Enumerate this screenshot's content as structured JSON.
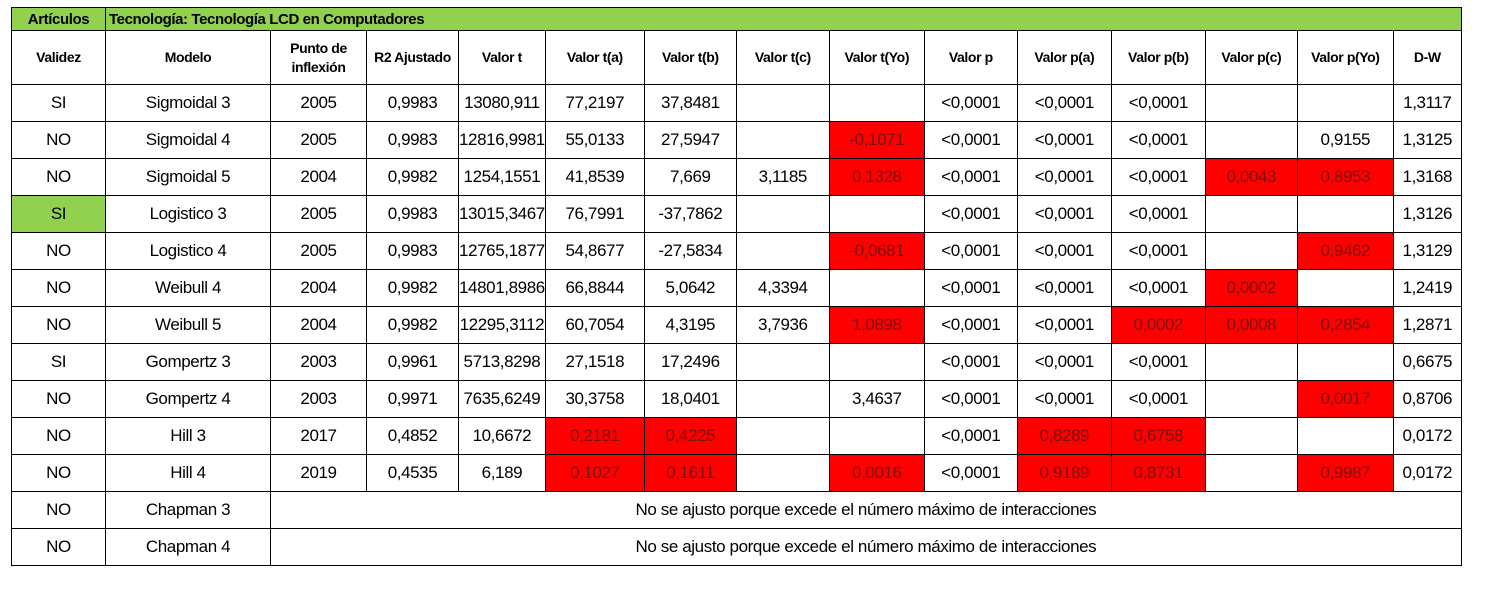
{
  "table": {
    "top_left": "Artículos",
    "title": "Tecnología: Tecnología LCD en Computadores",
    "headers": [
      "Validez",
      "Modelo",
      "Punto de inflexión",
      "R2 Ajustado",
      "Valor t",
      "Valor t(a)",
      "Valor t(b)",
      "Valor t(c)",
      "Valor t(Yo)",
      "Valor p",
      "Valor p(a)",
      "Valor p(b)",
      "Valor p(c)",
      "Valor p(Yo)",
      "D-W"
    ],
    "rows": [
      [
        "SI",
        "Sigmoidal 3",
        "2005",
        "0,9983",
        "13080,911",
        "77,2197",
        "37,8481",
        "",
        "",
        "<0,0001",
        "<0,0001",
        "<0,0001",
        "",
        "",
        "1,3117"
      ],
      [
        "NO",
        "Sigmoidal 4",
        "2005",
        "0,9983",
        "12816,9981",
        "55,0133",
        "27,5947",
        "",
        "-0,1071",
        "<0,0001",
        "<0,0001",
        "<0,0001",
        "",
        "0,9155",
        "1,3125"
      ],
      [
        "NO",
        "Sigmoidal 5",
        "2004",
        "0,9982",
        "1254,1551",
        "41,8539",
        "7,669",
        "3,1185",
        "0,1328",
        "<0,0001",
        "<0,0001",
        "<0,0001",
        "0,0043",
        "0,8953",
        "1,3168"
      ],
      [
        "SI",
        "Logistico 3",
        "2005",
        "0,9983",
        "13015,3467",
        "76,7991",
        "-37,7862",
        "",
        "",
        "<0,0001",
        "<0,0001",
        "<0,0001",
        "",
        "",
        "1,3126"
      ],
      [
        "NO",
        "Logistico 4",
        "2005",
        "0,9983",
        "12765,1877",
        "54,8677",
        "-27,5834",
        "",
        "-0,0681",
        "<0,0001",
        "<0,0001",
        "<0,0001",
        "",
        "0,9462",
        "1,3129"
      ],
      [
        "NO",
        "Weibull 4",
        "2004",
        "0,9982",
        "14801,8986",
        "66,8844",
        "5,0642",
        "4,3394",
        "",
        "<0,0001",
        "<0,0001",
        "<0,0001",
        "0,0002",
        "",
        "1,2419"
      ],
      [
        "NO",
        "Weibull 5",
        "2004",
        "0,9982",
        "12295,3112",
        "60,7054",
        "4,3195",
        "3,7936",
        "1,0898",
        "<0,0001",
        "<0,0001",
        "0,0002",
        "0,0008",
        "0,2854",
        "1,2871"
      ],
      [
        "SI",
        "Gompertz 3",
        "2003",
        "0,9961",
        "5713,8298",
        "27,1518",
        "17,2496",
        "",
        "",
        "<0,0001",
        "<0,0001",
        "<0,0001",
        "",
        "",
        "0,6675"
      ],
      [
        "NO",
        "Gompertz 4",
        "2003",
        "0,9971",
        "7635,6249",
        "30,3758",
        "18,0401",
        "",
        "3,4637",
        "<0,0001",
        "<0,0001",
        "<0,0001",
        "",
        "0,0017",
        "0,8706"
      ],
      [
        "NO",
        "Hill 3",
        "2017",
        "0,4852",
        "10,6672",
        "0,2181",
        "0,4225",
        "",
        "",
        "<0,0001",
        "0,8289",
        "0,6758",
        "",
        "",
        "0,0172"
      ],
      [
        "NO",
        "Hill 4",
        "2019",
        "0,4535",
        "6,189",
        "0,1027",
        "0,1611",
        "",
        "0,0016",
        "<0,0001",
        "0,9189",
        "0,8731",
        "",
        "0,9987",
        "0,0172"
      ]
    ],
    "highlights": [
      [],
      [
        8
      ],
      [
        8,
        12,
        13
      ],
      [],
      [
        8,
        13
      ],
      [
        12
      ],
      [
        8,
        11,
        12,
        13
      ],
      [],
      [
        13
      ],
      [
        5,
        6,
        10,
        11
      ],
      [
        5,
        6,
        8,
        10,
        11,
        13
      ]
    ],
    "green_validity_rows": [
      3
    ],
    "note_rows": [
      {
        "validez": "NO",
        "modelo": "Chapman 3",
        "note": "No se ajusto porque excede el número máximo de interacciones"
      },
      {
        "validez": "NO",
        "modelo": "Chapman 4",
        "note": "No se ajusto porque excede el número máximo de interacciones"
      }
    ],
    "colors": {
      "header_green": "#92d050",
      "highlight_red": "#ff0000",
      "red_text": "#7a1010"
    }
  }
}
